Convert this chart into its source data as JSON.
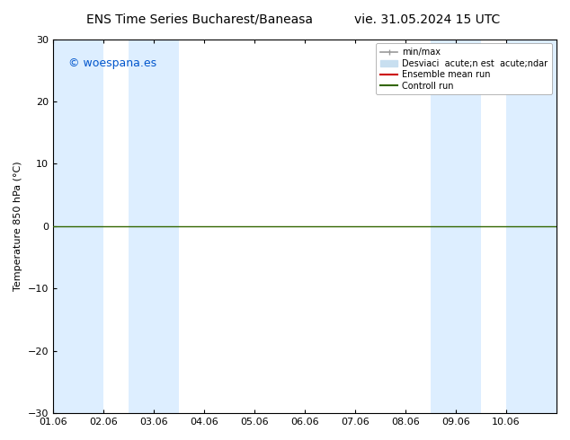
{
  "title_left": "ENS Time Series Bucharest/Baneasa",
  "title_right": "vie. 31.05.2024 15 UTC",
  "ylabel": "Temperature 850 hPa (°C)",
  "ylim": [
    -30,
    30
  ],
  "yticks": [
    -30,
    -20,
    -10,
    0,
    10,
    20,
    30
  ],
  "xlim": [
    0,
    10
  ],
  "xtick_labels": [
    "01.06",
    "02.06",
    "03.06",
    "04.06",
    "05.06",
    "06.06",
    "07.06",
    "08.06",
    "09.06",
    "10.06"
  ],
  "xtick_positions": [
    0,
    1,
    2,
    3,
    4,
    5,
    6,
    7,
    8,
    9
  ],
  "watermark": "© woespana.es",
  "watermark_color": "#0055cc",
  "bg_color": "#ffffff",
  "plot_bg_color": "#ffffff",
  "shaded_bands": [
    {
      "x_start": 0.0,
      "x_end": 1.0,
      "color": "#ddeeff"
    },
    {
      "x_start": 1.5,
      "x_end": 2.5,
      "color": "#ddeeff"
    },
    {
      "x_start": 7.5,
      "x_end": 8.5,
      "color": "#ddeeff"
    },
    {
      "x_start": 9.0,
      "x_end": 10.0,
      "color": "#ddeeff"
    }
  ],
  "hline_y": 0.0,
  "hline_color": "#336600",
  "hline_lw": 1.0,
  "legend_label_minmax": "min/max",
  "legend_label_dev": "Desviaci  acute;n est  acute;ndar",
  "legend_label_ens": "Ensemble mean run",
  "legend_label_ctrl": "Controll run",
  "minmax_color": "#999999",
  "dev_color": "#c8dff0",
  "ens_color": "#cc0000",
  "ctrl_color": "#336600",
  "title_fontsize": 10,
  "axis_fontsize": 8,
  "tick_fontsize": 8,
  "legend_fontsize": 7
}
